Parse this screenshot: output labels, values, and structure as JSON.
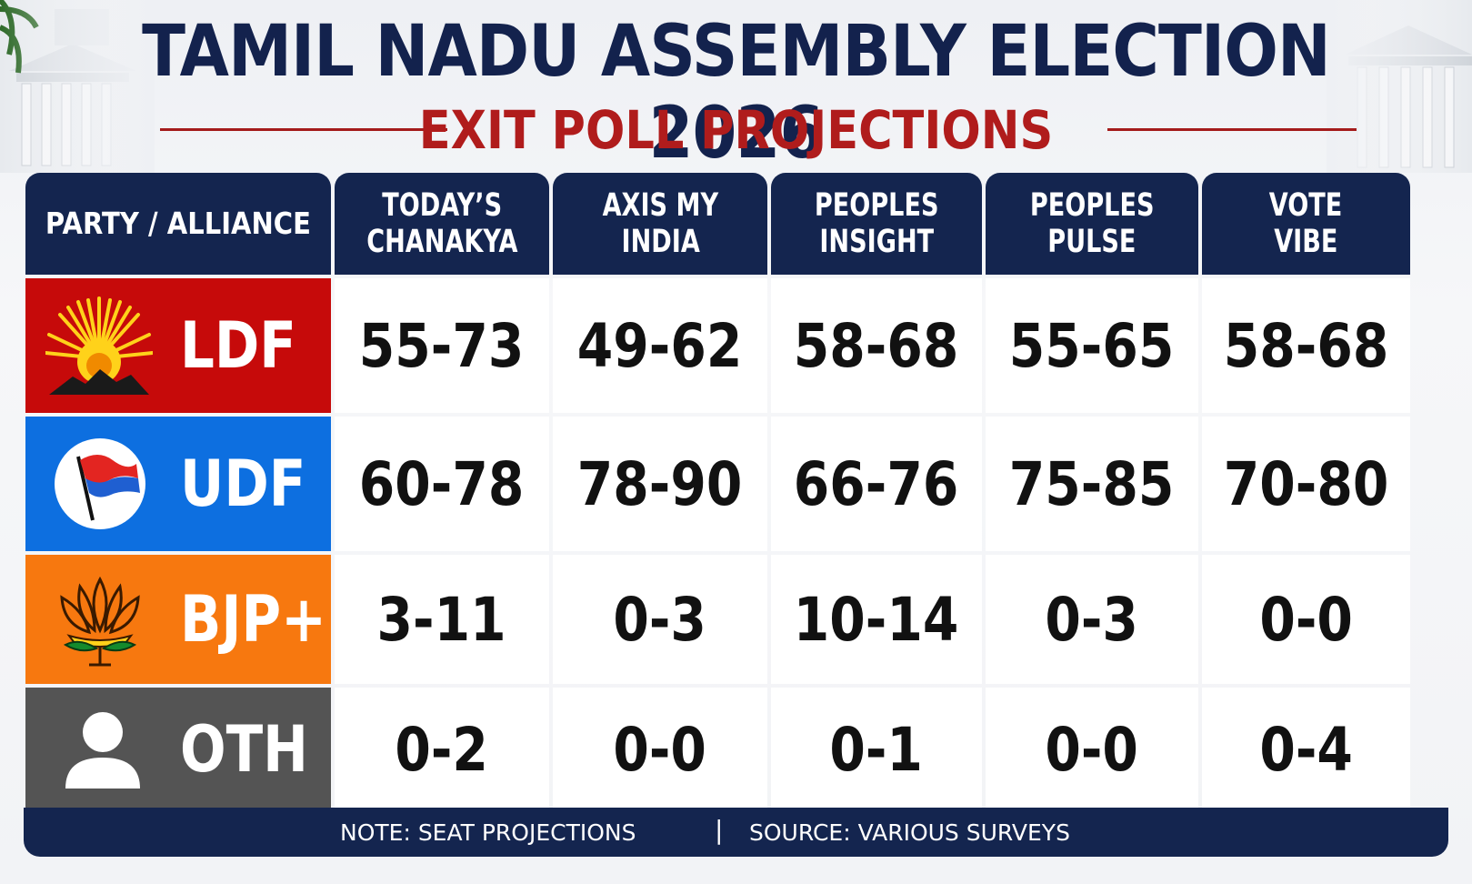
{
  "header": {
    "title": "TAMIL NADU ASSEMBLY ELECTION 2026",
    "subtitle": "EXIT POLL PROJECTIONS"
  },
  "table": {
    "first_header": "PARTY / ALLIANCE",
    "columns": [
      {
        "line1": "TODAY’S",
        "line2": "CHANAKYA"
      },
      {
        "line1": "AXIS MY",
        "line2": "INDIA"
      },
      {
        "line1": "PEOPLES",
        "line2": "INSIGHT"
      },
      {
        "line1": "PEOPLES",
        "line2": "PULSE"
      },
      {
        "line1": "VOTE",
        "line2": "VIBE"
      }
    ],
    "rows": [
      {
        "party": "LDF",
        "icon": "rising-sun-icon",
        "color": "#c60a0a",
        "values": [
          "55-73",
          "49-62",
          "58-68",
          "55-65",
          "58-68"
        ]
      },
      {
        "party": "UDF",
        "icon": "flag-icon",
        "color": "#0d6fe0",
        "values": [
          "60-78",
          "78-90",
          "66-76",
          "75-85",
          "70-80"
        ]
      },
      {
        "party": "BJP+",
        "icon": "lotus-icon",
        "color": "#f7780f",
        "values": [
          "3-11",
          "0-3",
          "10-14",
          "0-3",
          "0-0"
        ]
      },
      {
        "party": "OTH",
        "icon": "person-icon",
        "color": "#545454",
        "values": [
          "0-2",
          "0-0",
          "0-1",
          "0-0",
          "0-4"
        ]
      }
    ]
  },
  "footer": {
    "note": "NOTE: SEAT PROJECTIONS",
    "separator": "|",
    "source": "SOURCE: VARIOUS SURVEYS"
  },
  "colors": {
    "navy": "#14254f",
    "title_red": "#b01c1c"
  }
}
